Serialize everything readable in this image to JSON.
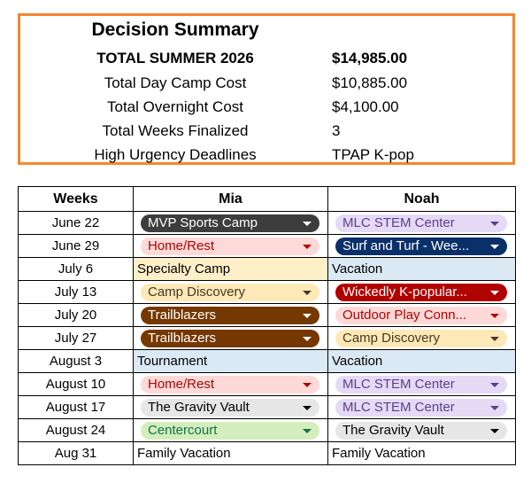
{
  "summary": {
    "title": "Decision Summary",
    "rows": [
      [
        "TOTAL SUMMER 2026",
        "$14,985.00"
      ],
      [
        "Total Day Camp Cost",
        "$10,885.00"
      ],
      [
        "Total Overnight Cost",
        "$4,100.00"
      ],
      [
        "Total Weeks Finalized",
        "3"
      ],
      [
        "High Urgency Deadlines",
        "TPAP K-pop"
      ]
    ]
  },
  "table": {
    "header": [
      "Weeks",
      "Mia",
      "Noah"
    ],
    "rows": [
      [
        "June 22",
        "MVP Sports Camp",
        "MLC STEM Center"
      ],
      [
        "June 29",
        "Home/Rest",
        "Surf and Turf - Wee..."
      ],
      [
        "July 6",
        "Specialty Camp",
        "Vacation"
      ],
      [
        "July 13",
        "Camp Discovery",
        "Wickedly K-popular..."
      ],
      [
        "July 20",
        "Trailblazers",
        "Outdoor Play Conn..."
      ],
      [
        "July 27",
        "Trailblazers",
        "Camp Discovery"
      ],
      [
        "August 3",
        "Tournament",
        "Vacation"
      ],
      [
        "August 10",
        "Home/Rest",
        "MLC STEM Center"
      ],
      [
        "August 17",
        "The Gravity Vault",
        "MLC STEM Center"
      ],
      [
        "August 24",
        "Centercourt",
        "The Gravity Vault"
      ],
      [
        "Aug 31",
        "Family Vacation",
        "Family Vacation"
      ]
    ]
  }
}
